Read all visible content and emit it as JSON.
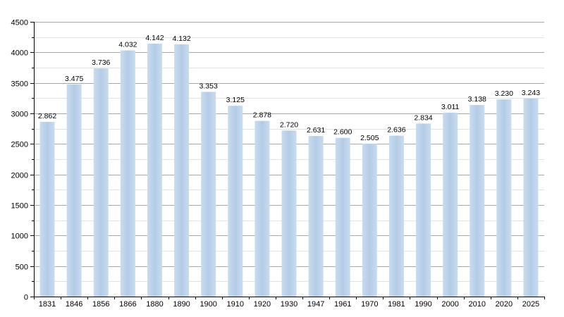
{
  "chart_data": {
    "type": "bar",
    "categories": [
      "1831",
      "1846",
      "1856",
      "1866",
      "1880",
      "1890",
      "1900",
      "1910",
      "1920",
      "1930",
      "1947",
      "1961",
      "1970",
      "1981",
      "1990",
      "2000",
      "2010",
      "2020",
      "2025"
    ],
    "values": [
      2862,
      3475,
      3736,
      4032,
      4142,
      4132,
      3353,
      3125,
      2878,
      2720,
      2631,
      2600,
      2505,
      2636,
      2834,
      3011,
      3138,
      3230,
      3243
    ],
    "value_labels": [
      "2.862",
      "3.475",
      "3.736",
      "4.032",
      "4.142",
      "4.132",
      "3.353",
      "3.125",
      "2.878",
      "2.720",
      "2.631",
      "2.600",
      "2.505",
      "2.636",
      "2.834",
      "3.011",
      "3.138",
      "3.230",
      "3.243"
    ],
    "ylim": [
      0,
      4500
    ],
    "y_ticks": [
      "0",
      "500",
      "1000",
      "1500",
      "2000",
      "2500",
      "3000",
      "3500",
      "4000",
      "4500"
    ],
    "grid": true,
    "bar_color": "#b7cfe8"
  }
}
